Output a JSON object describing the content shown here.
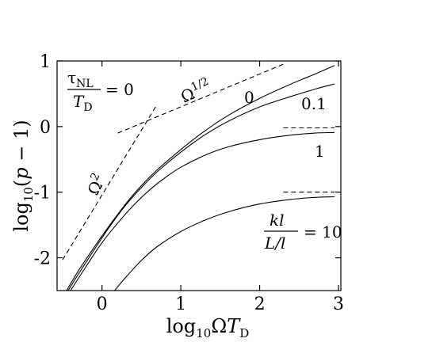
{
  "chart_data": {
    "type": "line",
    "xlabel": "log₁₀ΩT_D",
    "ylabel": "log₁₀(p − 1)",
    "xlim": [
      -0.57,
      3.03
    ],
    "ylim": [
      -2.5,
      1.0
    ],
    "xticks": [
      "0",
      "1",
      "2",
      "3"
    ],
    "yticks": [
      "1",
      "0",
      "-1",
      "-2"
    ],
    "grid": false,
    "legend": "none",
    "series": [
      {
        "name": "0",
        "style": "solid",
        "x": [
          -0.45,
          -0.3,
          -0.1,
          0.1,
          0.3,
          0.5,
          0.7,
          1.0,
          1.3,
          1.6,
          2.0,
          2.4,
          2.7,
          2.95
        ],
        "y": [
          -2.5,
          -2.2,
          -1.84,
          -1.5,
          -1.18,
          -0.9,
          -0.66,
          -0.35,
          -0.07,
          0.17,
          0.43,
          0.65,
          0.8,
          0.93
        ]
      },
      {
        "name": "0.1",
        "style": "solid",
        "x": [
          -0.43,
          -0.3,
          -0.1,
          0.1,
          0.3,
          0.5,
          0.7,
          1.0,
          1.3,
          1.6,
          2.0,
          2.4,
          2.7,
          2.95
        ],
        "y": [
          -2.5,
          -2.25,
          -1.88,
          -1.52,
          -1.2,
          -0.93,
          -0.69,
          -0.39,
          -0.13,
          0.08,
          0.3,
          0.46,
          0.57,
          0.65
        ]
      },
      {
        "name": "1",
        "style": "solid",
        "x": [
          -0.4,
          -0.2,
          0.0,
          0.2,
          0.4,
          0.6,
          0.8,
          1.0,
          1.3,
          1.6,
          2.0,
          2.4,
          2.7,
          2.95
        ],
        "y": [
          -2.5,
          -2.13,
          -1.77,
          -1.47,
          -1.2,
          -0.97,
          -0.78,
          -0.62,
          -0.44,
          -0.31,
          -0.2,
          -0.13,
          -0.1,
          -0.09
        ]
      },
      {
        "name": "10",
        "style": "solid",
        "x": [
          0.16,
          0.3,
          0.5,
          0.7,
          1.0,
          1.3,
          1.6,
          2.0,
          2.4,
          2.7,
          2.95
        ],
        "y": [
          -2.5,
          -2.3,
          -2.04,
          -1.83,
          -1.6,
          -1.43,
          -1.3,
          -1.18,
          -1.11,
          -1.08,
          -1.07
        ]
      },
      {
        "name": "Ω²",
        "style": "dashed",
        "x": [
          -0.5,
          0.68
        ],
        "y": [
          -2.03,
          0.3
        ]
      },
      {
        "name": "Ω^1/2",
        "style": "dashed",
        "x": [
          0.2,
          2.3
        ],
        "y": [
          -0.1,
          0.95
        ]
      },
      {
        "name": "asymptote 1",
        "style": "dashed",
        "x": [
          2.3,
          2.95
        ],
        "y": [
          -0.02,
          -0.02
        ]
      },
      {
        "name": "asymptote 10",
        "style": "dashed",
        "x": [
          2.3,
          2.95
        ],
        "y": [
          -1.0,
          -1.0
        ]
      }
    ],
    "annotations": {
      "tau_num": "τ",
      "tau_sub": "NL",
      "tau_den": "T",
      "tau_den_sub": "D",
      "tau_eq": "= 0",
      "omega_half": "Ω",
      "omega_half_exp": "1/2",
      "omega_sq": "Ω",
      "omega_sq_exp": "2",
      "label_0": "0",
      "label_01": "0.1",
      "label_1": "1",
      "kl_num": "kl",
      "kl_den": "L/l",
      "kl_eq": "= 10"
    }
  }
}
